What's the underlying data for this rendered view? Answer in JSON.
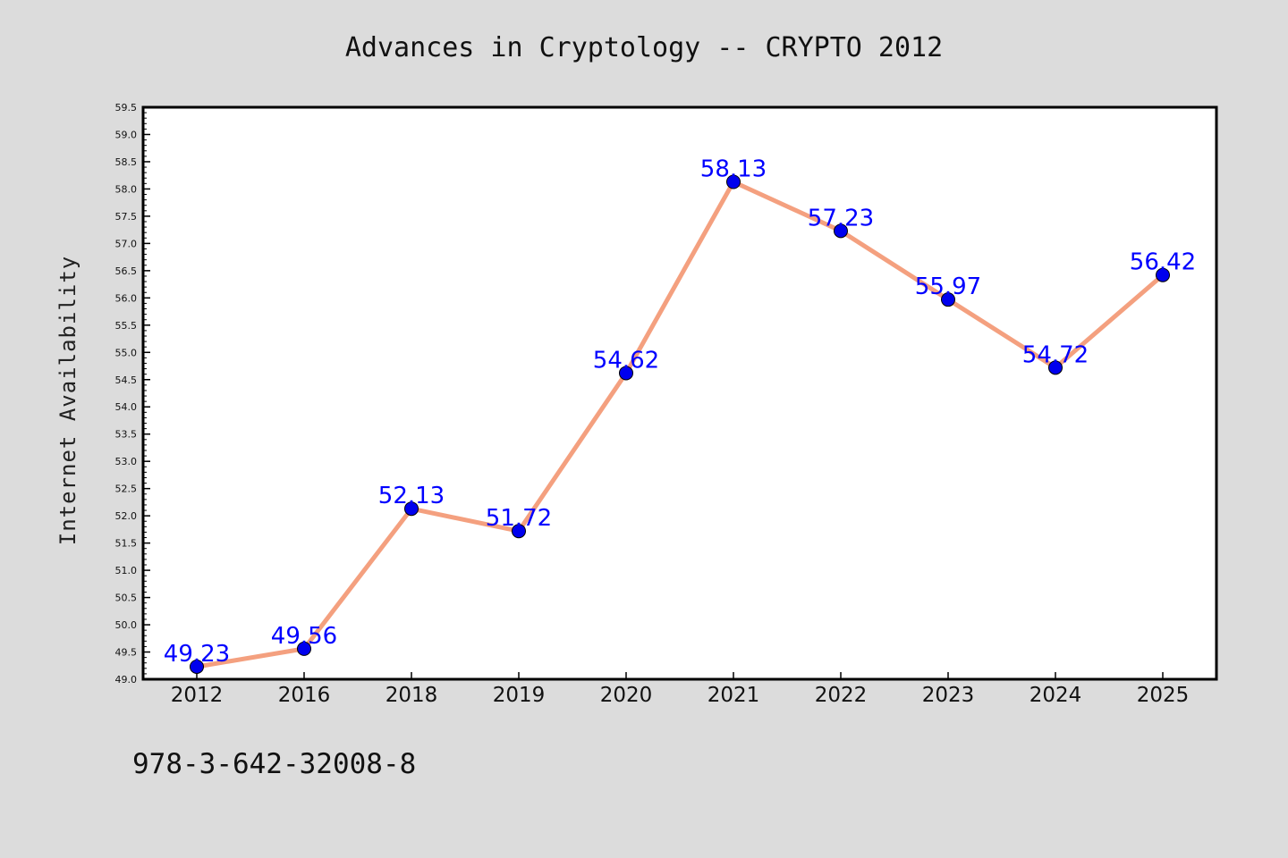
{
  "chart_data": {
    "type": "line",
    "title": "Advances in Cryptology -- CRYPTO 2012",
    "xlabel": "",
    "ylabel": "Internet Availability",
    "categories": [
      "2012",
      "2016",
      "2018",
      "2019",
      "2020",
      "2021",
      "2022",
      "2023",
      "2024",
      "2025"
    ],
    "series": [
      {
        "values": [
          49.23,
          49.56,
          52.13,
          51.72,
          54.62,
          58.13,
          57.23,
          55.97,
          54.72,
          56.42
        ],
        "line_color": "#f4a07f",
        "marker_color": "#0000ee"
      }
    ],
    "data_labels": [
      "49.23",
      "49.56",
      "52.13",
      "51.72",
      "54.62",
      "58.13",
      "57.23",
      "55.97",
      "54.72",
      "56.42"
    ],
    "ylim": [
      49.0,
      59.5
    ],
    "yticks": [
      "49.0",
      "49.5",
      "50.0",
      "50.5",
      "51.0",
      "51.5",
      "52.0",
      "52.5",
      "53.0",
      "53.5",
      "54.0",
      "54.5",
      "55.0",
      "55.5",
      "56.0",
      "56.5",
      "57.0",
      "57.5",
      "58.0",
      "58.5",
      "59.0",
      "59.5"
    ],
    "grid": false,
    "label_color": "#0000ff"
  },
  "footer_text": "978-3-642-32008-8"
}
